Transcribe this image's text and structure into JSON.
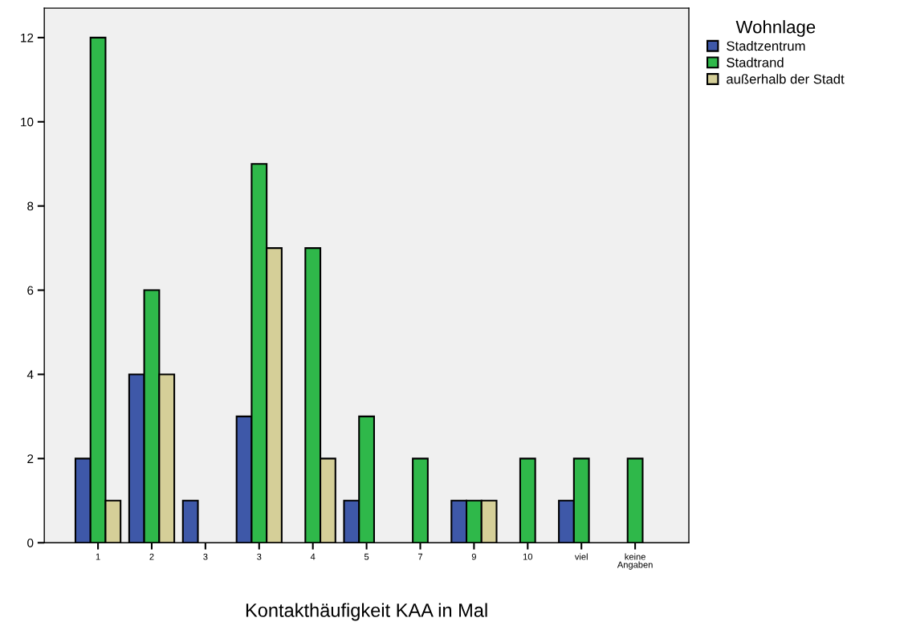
{
  "chart_data": {
    "type": "bar",
    "xlabel": "Kontakthäufigkeit KAA in Mal",
    "categories": [
      "1",
      "2",
      "3",
      "3",
      "4",
      "5",
      "7",
      "9",
      "10",
      "viel",
      "keine\nAngaben"
    ],
    "series": [
      {
        "name": "Stadtzentrum",
        "color": "#3e58a8",
        "values": [
          2,
          4,
          1,
          3,
          null,
          1,
          null,
          1,
          null,
          1,
          null
        ]
      },
      {
        "name": "Stadtrand",
        "color": "#2fb84a",
        "values": [
          12,
          6,
          null,
          9,
          7,
          3,
          2,
          1,
          2,
          2,
          2
        ]
      },
      {
        "name": "außerhalb der Stadt",
        "color": "#d5cf98",
        "values": [
          1,
          4,
          null,
          7,
          2,
          null,
          null,
          1,
          null,
          null,
          null
        ]
      }
    ],
    "ylim": [
      0,
      12.7
    ],
    "yticks": [
      0,
      2,
      4,
      6,
      8,
      10,
      12
    ],
    "grid": false,
    "legend": "top right",
    "legend_title": "Wohnlage"
  }
}
